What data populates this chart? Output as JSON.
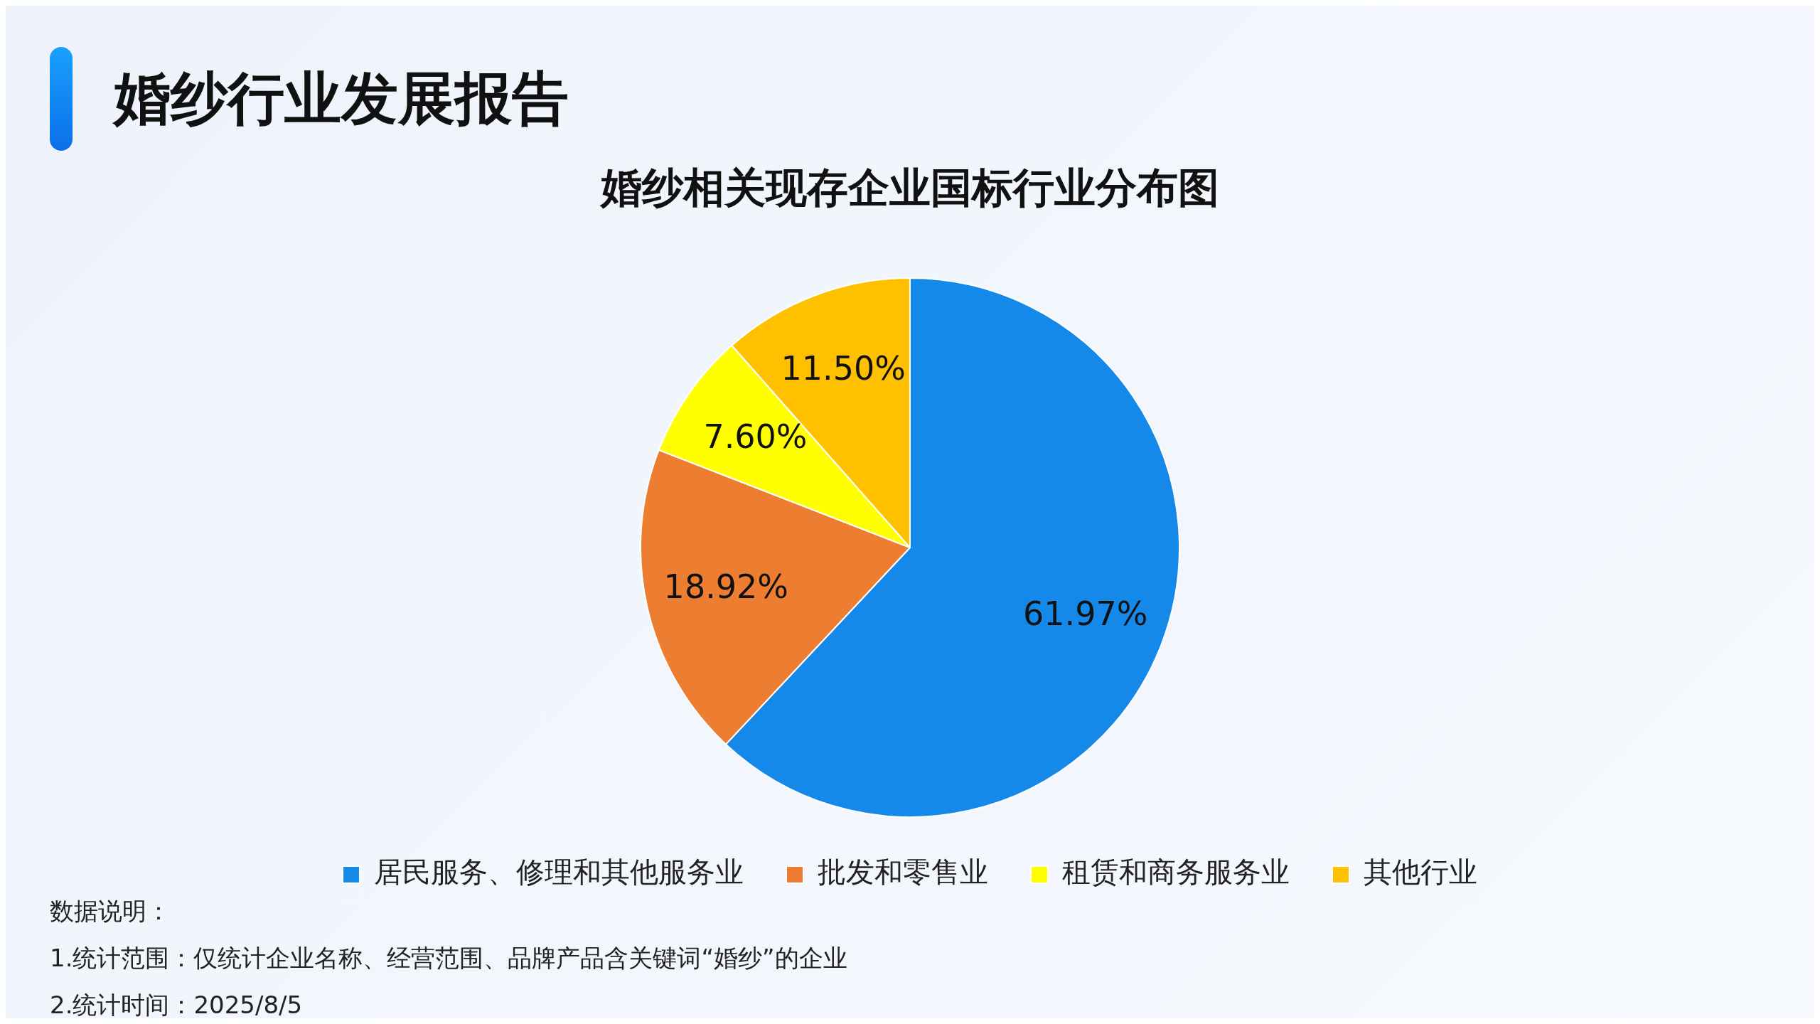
{
  "chart_data": {
    "type": "pie",
    "title": "婚纱行业发展报告",
    "subtitle": "婚纱相关现存企业国标行业分布图",
    "categories": [
      "居民服务、修理和其他服务业",
      "批发和零售业",
      "租赁和商务服务业",
      "其他行业"
    ],
    "values": [
      61.97,
      18.92,
      7.6,
      11.5
    ],
    "value_labels": [
      "61.97%",
      "18.92%",
      "7.60%",
      "11.50%"
    ],
    "colors": [
      "#1589ea",
      "#ed7d31",
      "#ffff00",
      "#ffc000"
    ],
    "legend": "bottom",
    "annotations": [
      "数据说明：",
      "1.统计范围：仅统计企业名称、经营范围、品牌产品含关键词“婚纱”的企业",
      "2.统计时间：2025/8/5"
    ]
  }
}
